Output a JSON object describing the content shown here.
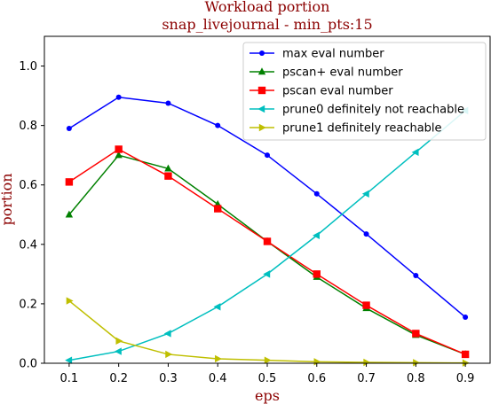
{
  "chart_data": {
    "type": "line",
    "title": "Workload portion",
    "subtitle": "snap_livejournal - min_pts:15",
    "xlabel": "eps",
    "ylabel": "portion",
    "x": [
      0.1,
      0.2,
      0.3,
      0.4,
      0.5,
      0.6,
      0.7,
      0.8,
      0.9
    ],
    "xlim": [
      0.05,
      0.95
    ],
    "ylim": [
      0,
      1.1
    ],
    "xticks": [
      "0.1",
      "0.2",
      "0.3",
      "0.4",
      "0.5",
      "0.6",
      "0.7",
      "0.8",
      "0.9"
    ],
    "yticks": [
      "0.0",
      "0.2",
      "0.4",
      "0.6",
      "0.8",
      "1.0"
    ],
    "ytick_values": [
      0,
      0.2,
      0.4,
      0.6,
      0.8,
      1.0
    ],
    "grid": false,
    "legend_position": "upper-right",
    "label_color": "#8b0000",
    "series": [
      {
        "name": "max eval number",
        "color": "#0000ff",
        "marker": "circle",
        "values": [
          0.79,
          0.895,
          0.875,
          0.8,
          0.7,
          0.57,
          0.435,
          0.295,
          0.155
        ]
      },
      {
        "name": "pscan+ eval number",
        "color": "#008000",
        "marker": "triangle-up",
        "values": [
          0.5,
          0.7,
          0.655,
          0.535,
          0.41,
          0.29,
          0.185,
          0.095,
          0.03
        ]
      },
      {
        "name": "pscan eval number",
        "color": "#ff0000",
        "marker": "square",
        "values": [
          0.61,
          0.72,
          0.63,
          0.52,
          0.41,
          0.3,
          0.195,
          0.1,
          0.03
        ]
      },
      {
        "name": "prune0 definitely not reachable",
        "color": "#00bfbf",
        "marker": "triangle-left",
        "values": [
          0.01,
          0.04,
          0.1,
          0.19,
          0.3,
          0.43,
          0.57,
          0.71,
          0.85
        ]
      },
      {
        "name": "prune1 definitely reachable",
        "color": "#bfbf00",
        "marker": "triangle-right",
        "values": [
          0.21,
          0.075,
          0.03,
          0.015,
          0.01,
          0.005,
          0.003,
          0.002,
          0.001
        ]
      }
    ]
  }
}
